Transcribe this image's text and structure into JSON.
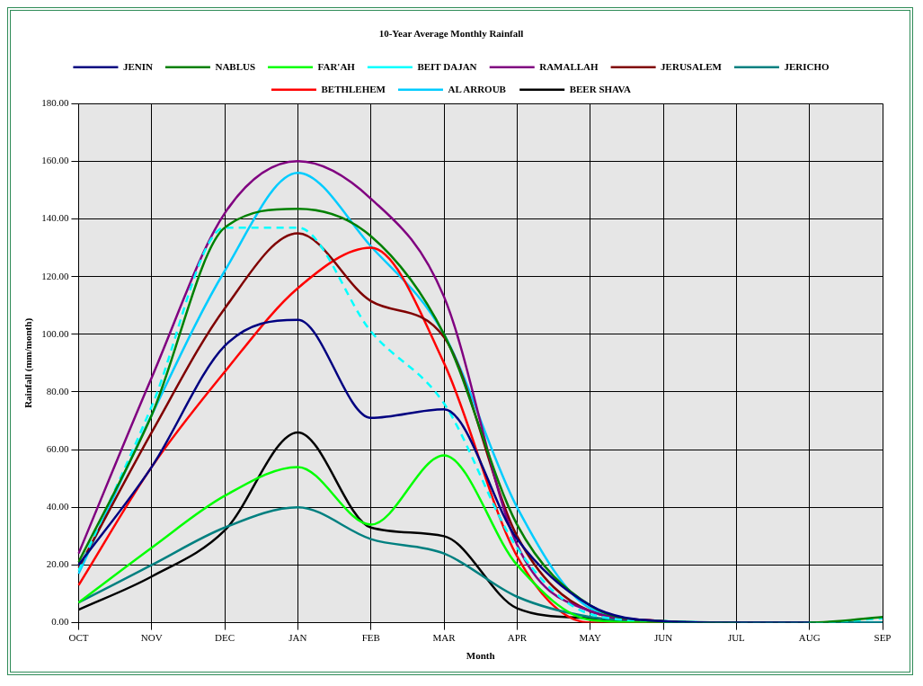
{
  "chart_data": {
    "type": "line",
    "title": "10-Year Average Monthly Rainfall",
    "xlabel": "Month",
    "ylabel": "Rainfall (mm/month)",
    "categories": [
      "OCT",
      "NOV",
      "DEC",
      "JAN",
      "FEB",
      "MAR",
      "APR",
      "MAY",
      "JUN",
      "JUL",
      "AUG",
      "SEP"
    ],
    "series": [
      {
        "name": "JENIN",
        "color": "#000080",
        "values": [
          20,
          54,
          96,
          105,
          71,
          74,
          29,
          6,
          0.5,
          0,
          0,
          null
        ]
      },
      {
        "name": "NABLUS",
        "color": "#008000",
        "values": [
          21,
          72,
          137,
          143.5,
          134,
          100,
          34,
          6,
          0.5,
          0,
          0,
          2
        ]
      },
      {
        "name": "FAR'AH",
        "color": "#00ff00",
        "values": [
          7,
          26,
          44,
          54,
          34,
          58,
          20,
          1,
          0,
          0,
          null,
          null
        ]
      },
      {
        "name": "BEIT DAJAN",
        "color": "#00ffff",
        "line_style": "dashed",
        "values": [
          18,
          75,
          137,
          137,
          101,
          76,
          26,
          3,
          0.5,
          0,
          0,
          1.5
        ]
      },
      {
        "name": "RAMALLAH",
        "color": "#800080",
        "values": [
          24,
          85,
          142,
          160,
          147,
          113,
          27,
          4,
          0.5,
          null,
          null,
          null
        ]
      },
      {
        "name": "JERUSALEM",
        "color": "#800000",
        "values": [
          19,
          66,
          109,
          135,
          111.5,
          99,
          30,
          4,
          0.5,
          null,
          null,
          null
        ]
      },
      {
        "name": "JERICHO",
        "color": "#008080",
        "values": [
          7,
          20,
          33,
          40,
          29,
          24,
          9,
          2,
          0.5,
          0,
          0,
          0
        ]
      },
      {
        "name": "BETHLEHEM",
        "color": "#ff0000",
        "values": [
          13,
          54,
          87,
          116,
          130,
          90,
          23,
          0,
          0,
          null,
          null,
          null
        ]
      },
      {
        "name": "AL ARROUB",
        "color": "#00ccff",
        "values": [
          17,
          72,
          122,
          156,
          130.5,
          100,
          40,
          5,
          0.5,
          0,
          0,
          0
        ]
      },
      {
        "name": "BEER SHAVA",
        "color": "#000000",
        "values": [
          4.5,
          16,
          32,
          66,
          33,
          30,
          5,
          1.5,
          0,
          0,
          0,
          0
        ]
      }
    ],
    "ylim": [
      0,
      180
    ],
    "yticks": [
      {
        "value": 0,
        "label": "0.00"
      },
      {
        "value": 20,
        "label": "20.00"
      },
      {
        "value": 40,
        "label": "40.00"
      },
      {
        "value": 60,
        "label": "60.00"
      },
      {
        "value": 80,
        "label": "80.00"
      },
      {
        "value": 100,
        "label": "100.00"
      },
      {
        "value": 120,
        "label": "120.00"
      },
      {
        "value": 140,
        "label": "140.00"
      },
      {
        "value": 160,
        "label": "160.00"
      },
      {
        "value": 180,
        "label": "180.00"
      }
    ],
    "grid": true,
    "legend": "top",
    "marker": "none",
    "line_style": "solid"
  }
}
